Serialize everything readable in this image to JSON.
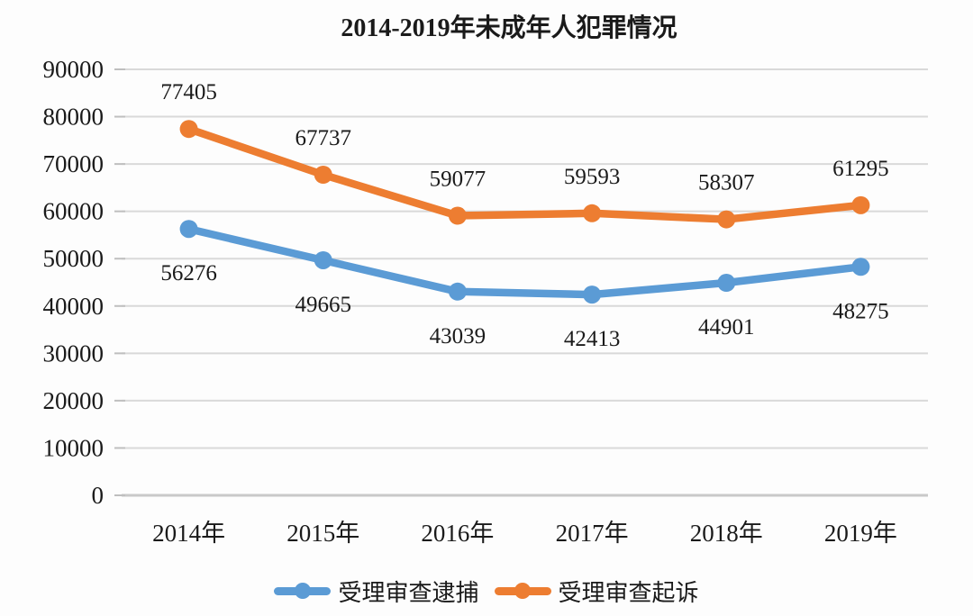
{
  "title": "2014-2019年未成年人犯罪情况",
  "colors": {
    "background": "#fdfdfd",
    "text": "#1a1a1a",
    "gridline": "#d9d9d9",
    "baseline": "#c9c9c9",
    "tick": "#bfbfbf",
    "series_blue": "#5B9BD5",
    "series_orange": "#ED7D31"
  },
  "chart_data": {
    "type": "line",
    "title": "2014-2019年未成年人犯罪情况",
    "categories": [
      "2014年",
      "2015年",
      "2016年",
      "2017年",
      "2018年",
      "2019年"
    ],
    "series": [
      {
        "name": "受理审查逮捕",
        "color": "#5B9BD5",
        "values": [
          56276,
          49665,
          43039,
          42413,
          44901,
          48275
        ],
        "label_position": "below"
      },
      {
        "name": "受理审查起诉",
        "color": "#ED7D31",
        "values": [
          77405,
          67737,
          59077,
          59593,
          58307,
          61295
        ],
        "label_position": "above"
      }
    ],
    "xlabel": "",
    "ylabel": "",
    "ylim": [
      0,
      90000
    ],
    "yticks": [
      0,
      10000,
      20000,
      30000,
      40000,
      50000,
      60000,
      70000,
      80000,
      90000
    ],
    "grid": true,
    "legend_position": "bottom",
    "data_labels": true
  }
}
